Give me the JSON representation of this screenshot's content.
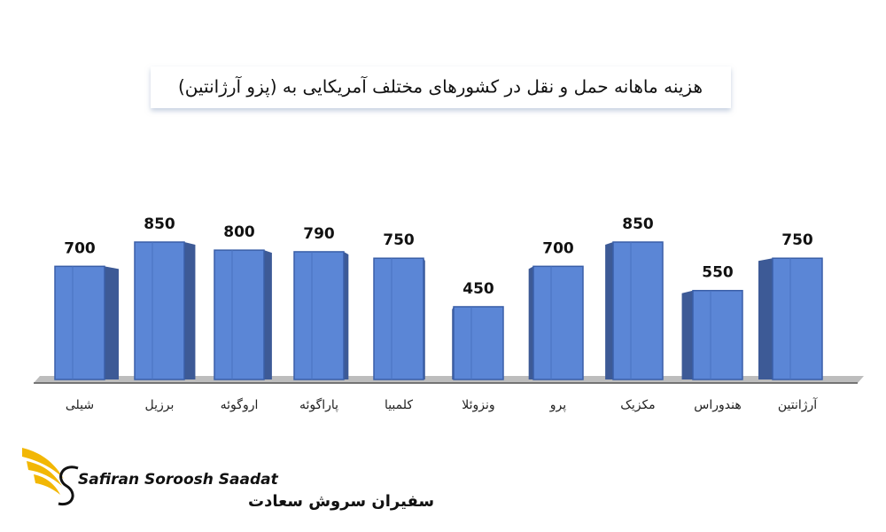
{
  "chart_data": {
    "type": "bar",
    "title": "هزینه ماهانه حمل و نقل در کشورهای مختلف آمریکایی به (پزو آرژانتین)",
    "categories": [
      "شیلی",
      "برزیل",
      "اروگوئه",
      "پاراگوئه",
      "کلمبیا",
      "ونزوئلا",
      "پرو",
      "مکزیک",
      "هندوراس",
      "آرژانتین"
    ],
    "values": [
      700,
      850,
      800,
      790,
      750,
      450,
      700,
      850,
      550,
      750
    ],
    "color": "#5b86d6"
  },
  "logo": {
    "name_latin": "Safiran Soroosh Saadat",
    "name_persian": "سفیران سروش سعادت"
  }
}
